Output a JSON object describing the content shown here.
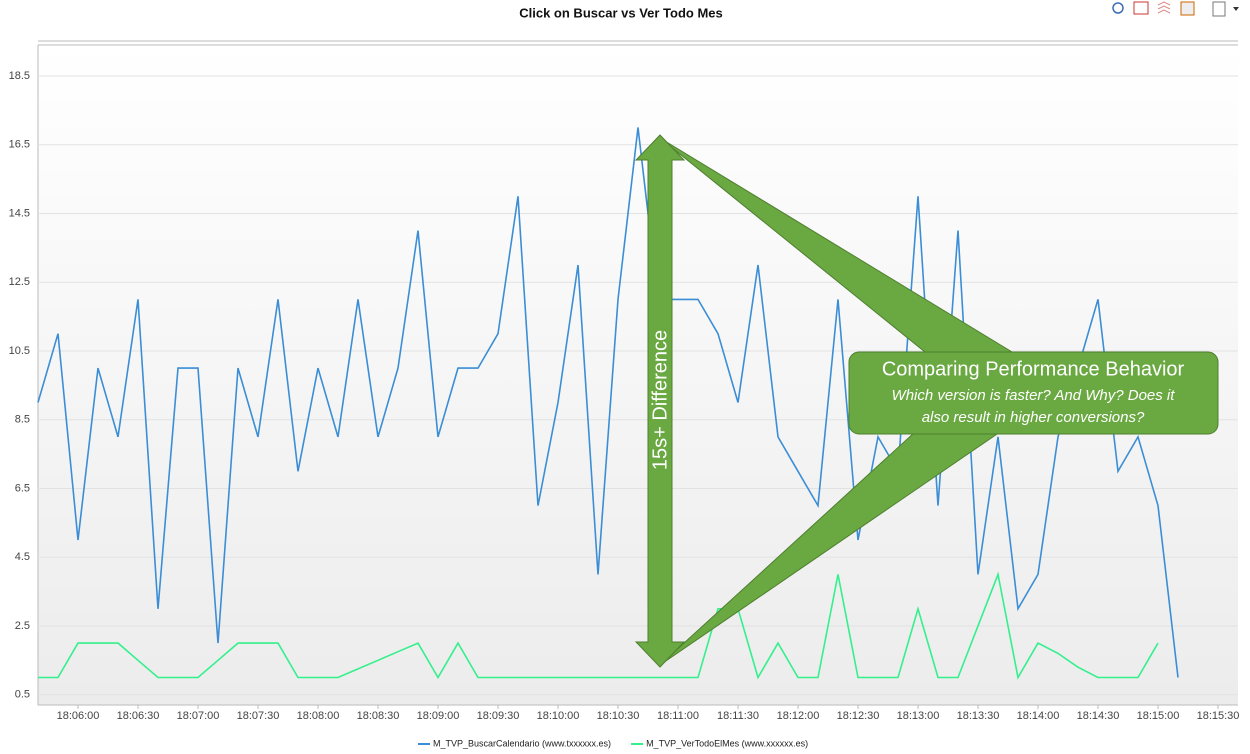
{
  "chart_data": {
    "type": "line",
    "title": "Click on Buscar vs Ver Todo Mes",
    "x": [
      "18:05:40",
      "18:05:50",
      "18:06:00",
      "18:06:10",
      "18:06:20",
      "18:06:30",
      "18:06:40",
      "18:06:50",
      "18:07:00",
      "18:07:10",
      "18:07:20",
      "18:07:30",
      "18:07:40",
      "18:07:50",
      "18:08:00",
      "18:08:10",
      "18:08:20",
      "18:08:30",
      "18:08:40",
      "18:08:50",
      "18:09:00",
      "18:09:10",
      "18:09:20",
      "18:09:30",
      "18:09:40",
      "18:09:50",
      "18:10:00",
      "18:10:10",
      "18:10:20",
      "18:10:30",
      "18:10:40",
      "18:10:50",
      "18:11:00",
      "18:11:10",
      "18:11:20",
      "18:11:30",
      "18:11:40",
      "18:11:50",
      "18:12:00",
      "18:12:10",
      "18:12:20",
      "18:12:30",
      "18:12:40",
      "18:12:50",
      "18:13:00",
      "18:13:10",
      "18:13:20",
      "18:13:30",
      "18:13:40",
      "18:13:50",
      "18:14:00",
      "18:14:10",
      "18:14:20",
      "18:14:30",
      "18:14:40",
      "18:14:50",
      "18:15:00",
      "18:15:10"
    ],
    "series": [
      {
        "name": "M_TVP_BuscarCalendario (www.txxxxxx.es)",
        "color": "#3b8ed6",
        "values": [
          9,
          11,
          5,
          10,
          8,
          12,
          3,
          10,
          10,
          2,
          10,
          8,
          12,
          7,
          10,
          8,
          12,
          8,
          10,
          14,
          8,
          10,
          10,
          11,
          15,
          6,
          9,
          13,
          4,
          12,
          17,
          12,
          12,
          12,
          11,
          9,
          13,
          8,
          7,
          6,
          12,
          5,
          8,
          7,
          15,
          6,
          14,
          4,
          8,
          3,
          4,
          8,
          10,
          12,
          7,
          8,
          6,
          1
        ]
      },
      {
        "name": "M_TVP_VerTodoElMes (www.xxxxxx.es)",
        "color": "#33f08c",
        "values": [
          1,
          1,
          2,
          2,
          2,
          1.5,
          1,
          1,
          1,
          1.5,
          2,
          2,
          2,
          1,
          1,
          1,
          1.25,
          1.5,
          1.75,
          2,
          1,
          2,
          1,
          1,
          1,
          1,
          1,
          1,
          1,
          1,
          1,
          1,
          1,
          1,
          3,
          3,
          1,
          2,
          1,
          1,
          4,
          1,
          1,
          1,
          3,
          1,
          1,
          2.5,
          4,
          1,
          2,
          1.7,
          1.3,
          1,
          1,
          1,
          2,
          null
        ]
      }
    ],
    "xlim": [
      "18:05:40",
      "18:15:40"
    ],
    "xticks": [
      "18:06:00",
      "18:06:30",
      "18:07:00",
      "18:07:30",
      "18:08:00",
      "18:08:30",
      "18:09:00",
      "18:09:30",
      "18:10:00",
      "18:10:30",
      "18:11:00",
      "18:11:30",
      "18:12:00",
      "18:12:30",
      "18:13:00",
      "18:13:30",
      "18:14:00",
      "18:14:30",
      "18:15:00",
      "18:15:30"
    ],
    "ylim": [
      0.2,
      19.4
    ],
    "yticks": [
      0.5,
      2.5,
      4.5,
      6.5,
      8.5,
      10.5,
      12.5,
      14.5,
      16.5,
      18.5
    ],
    "grid": true,
    "legend": "bottom",
    "annotations": {
      "arrow_label": "15s+ Difference",
      "callout_title": "Comparing Performance Behavior",
      "callout_lines": [
        "Which version is faster? And Why? Does it",
        "also result in higher conversions?"
      ]
    }
  }
}
